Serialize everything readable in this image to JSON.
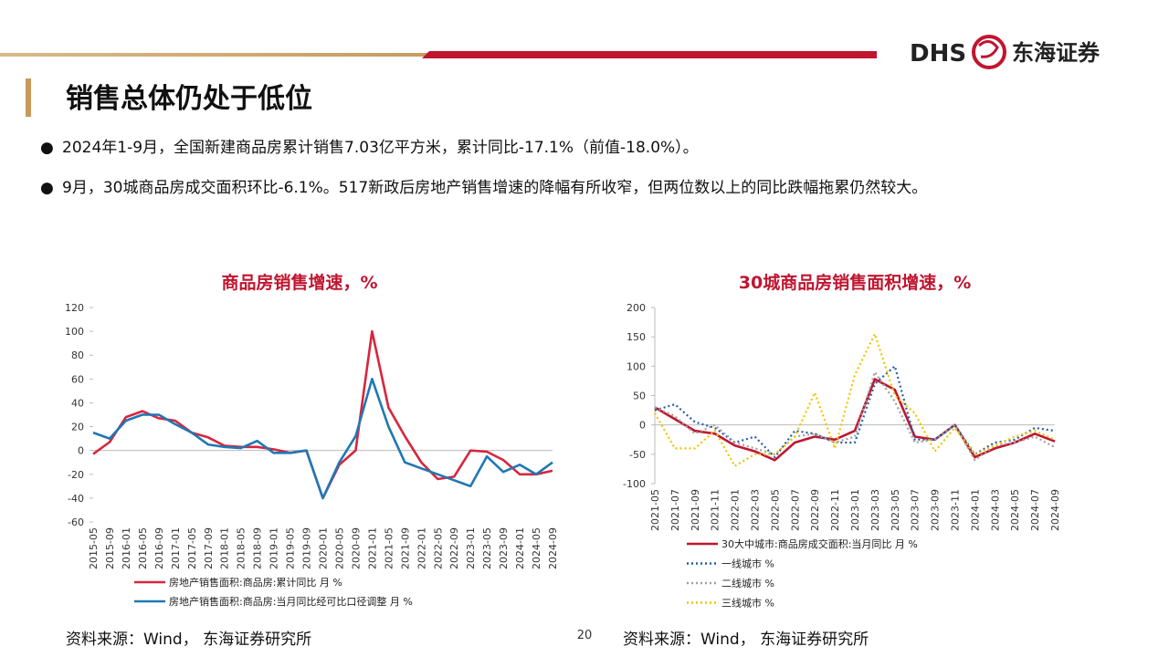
{
  "header": {
    "brand": "DHS",
    "brand_cn": "东海证券",
    "title": "销售总体仍处于低位"
  },
  "bullets": [
    "2024年1-9月，全国新建商品房累计销售7.03亿平方米，累计同比-17.1%（前值-18.0%）。",
    "9月，30城商品房成交面积环比-6.1%。517新政后房地产销售增速的降幅有所收窄，但两位数以上的同比跌幅拖累仍然较大。"
  ],
  "chart_data": [
    {
      "type": "line",
      "title": "商品房销售增速，%",
      "categories": [
        "2015-05",
        "2015-09",
        "2016-01",
        "2016-05",
        "2016-09",
        "2017-01",
        "2017-05",
        "2017-09",
        "2018-01",
        "2018-05",
        "2018-09",
        "2019-01",
        "2019-05",
        "2019-09",
        "2020-01",
        "2020-05",
        "2020-09",
        "2021-01",
        "2021-05",
        "2021-09",
        "2022-01",
        "2022-05",
        "2022-09",
        "2023-01",
        "2023-05",
        "2023-09",
        "2024-01",
        "2024-05",
        "2024-09"
      ],
      "series": [
        {
          "name": "房地产销售面积:商品房:累计同比 月 %",
          "color": "#d7263d",
          "dash": false,
          "values": [
            -3,
            7,
            28,
            33,
            27,
            25,
            15,
            11,
            4,
            3,
            3,
            1,
            -2,
            0,
            -40,
            -12,
            0,
            100,
            36,
            12,
            -10,
            -24,
            -22,
            0,
            -1,
            -8,
            -20,
            -20,
            -17
          ]
        },
        {
          "name": "房地产销售面积:商品房:当月同比经可比口径调整 月 %",
          "color": "#1f78b4",
          "dash": false,
          "values": [
            15,
            10,
            25,
            30,
            30,
            22,
            15,
            5,
            3,
            2,
            8,
            -2,
            -2,
            0,
            -40,
            -10,
            12,
            60,
            20,
            -10,
            -15,
            -20,
            -25,
            -30,
            -5,
            -18,
            -12,
            -20,
            -10
          ]
        }
      ],
      "ylim": [
        -60,
        120
      ],
      "yticks": [
        -60,
        -40,
        -20,
        0,
        20,
        40,
        60,
        80,
        100,
        120
      ]
    },
    {
      "type": "line",
      "title": "30城商品房销售面积增速，%",
      "categories": [
        "2021-05",
        "2021-07",
        "2021-09",
        "2021-11",
        "2022-01",
        "2022-03",
        "2022-05",
        "2022-07",
        "2022-09",
        "2022-11",
        "2023-01",
        "2023-03",
        "2023-05",
        "2023-07",
        "2023-09",
        "2023-11",
        "2024-01",
        "2024-03",
        "2024-05",
        "2024-07",
        "2024-09"
      ],
      "series": [
        {
          "name": "30大中城市:商品房成交面积:当月同比 月 %",
          "color": "#c0152f",
          "dash": false,
          "values": [
            30,
            10,
            -10,
            -15,
            -35,
            -45,
            -60,
            -30,
            -20,
            -25,
            -10,
            78,
            60,
            -20,
            -25,
            0,
            -55,
            -40,
            -30,
            -15,
            -28
          ]
        },
        {
          "name": "一线城市 %",
          "color": "#1f5fa8",
          "dash": true,
          "values": [
            25,
            35,
            5,
            -5,
            -30,
            -20,
            -55,
            -10,
            -15,
            -30,
            -30,
            70,
            100,
            -25,
            -25,
            0,
            -50,
            -30,
            -25,
            -5,
            -10
          ]
        },
        {
          "name": "二线城市 %",
          "color": "#a0a0a0",
          "dash": true,
          "values": [
            30,
            15,
            -15,
            0,
            -30,
            -40,
            -50,
            -20,
            -15,
            -30,
            -20,
            90,
            40,
            -30,
            -25,
            0,
            -60,
            -35,
            -30,
            -20,
            -38
          ]
        },
        {
          "name": "三线城市 %",
          "color": "#f2c200",
          "dash": true,
          "values": [
            20,
            -40,
            -40,
            -10,
            -70,
            -50,
            -50,
            -20,
            55,
            -40,
            85,
            155,
            50,
            20,
            -45,
            -5,
            -50,
            -35,
            -20,
            -10,
            -25
          ]
        }
      ],
      "ylim": [
        -100,
        200
      ],
      "yticks": [
        -100,
        -50,
        0,
        50,
        100,
        150,
        200
      ]
    }
  ],
  "sources": [
    "资料来源：Wind， 东海证券研究所",
    "资料来源：Wind， 东海证券研究所"
  ],
  "page_number": 20
}
